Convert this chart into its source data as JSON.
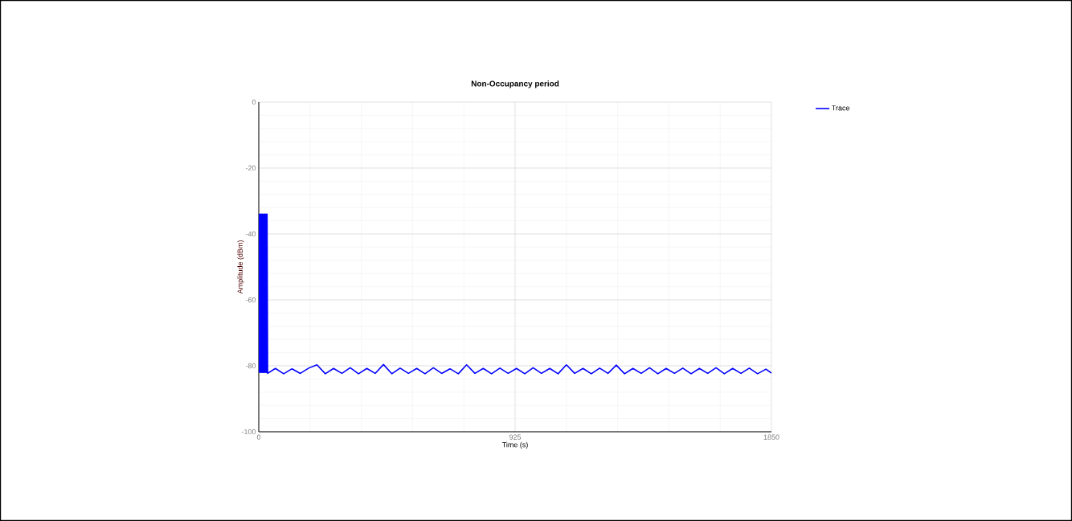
{
  "chart_data": {
    "type": "line",
    "title": "Non-Occupancy period",
    "xlabel": "Time (s)",
    "ylabel": "Amplitude (dBm)",
    "xlim": [
      0,
      1850
    ],
    "xticks": [
      0,
      925,
      1850
    ],
    "ylim": [
      -100,
      0
    ],
    "yticks": [
      -100,
      -80,
      -60,
      -40,
      -20,
      0
    ],
    "grid": true,
    "legend": "top right",
    "marker": "none",
    "line_style": "solid",
    "series": [
      {
        "name": "Trace",
        "color": "#0000ff",
        "x": [
          0,
          2,
          4,
          6,
          8,
          10,
          12,
          14,
          16,
          18,
          20,
          22,
          24,
          26,
          28,
          30,
          32,
          60,
          90,
          120,
          150,
          180,
          210,
          240,
          270,
          300,
          330,
          360,
          390,
          420,
          450,
          480,
          510,
          540,
          570,
          600,
          630,
          660,
          690,
          720,
          750,
          780,
          810,
          840,
          870,
          900,
          930,
          960,
          990,
          1020,
          1050,
          1080,
          1110,
          1140,
          1170,
          1200,
          1230,
          1260,
          1290,
          1320,
          1350,
          1380,
          1410,
          1440,
          1470,
          1500,
          1530,
          1560,
          1590,
          1620,
          1650,
          1680,
          1710,
          1740,
          1770,
          1800,
          1830,
          1850
        ],
        "values": [
          -82,
          -34,
          -82,
          -34,
          -82,
          -34,
          -82,
          -34,
          -82,
          -34,
          -82,
          -34,
          -82,
          -34,
          -82,
          -34,
          -82.3,
          -80.8,
          -82.4,
          -80.9,
          -82.3,
          -80.7,
          -79.7,
          -82.4,
          -80.8,
          -82.3,
          -80.6,
          -82.4,
          -80.8,
          -82.3,
          -79.6,
          -82.4,
          -80.7,
          -82.3,
          -80.8,
          -82.4,
          -80.6,
          -82.3,
          -80.9,
          -82.4,
          -79.7,
          -82.3,
          -80.8,
          -82.4,
          -80.7,
          -82.3,
          -80.8,
          -82.4,
          -80.6,
          -82.3,
          -80.8,
          -82.4,
          -79.7,
          -82.3,
          -80.8,
          -82.4,
          -80.7,
          -82.3,
          -79.8,
          -82.4,
          -80.8,
          -82.3,
          -80.6,
          -82.4,
          -80.8,
          -82.3,
          -80.7,
          -82.4,
          -80.8,
          -82.3,
          -80.6,
          -82.4,
          -80.8,
          -82.3,
          -80.7,
          -82.4,
          -81,
          -82.2
        ]
      }
    ]
  }
}
